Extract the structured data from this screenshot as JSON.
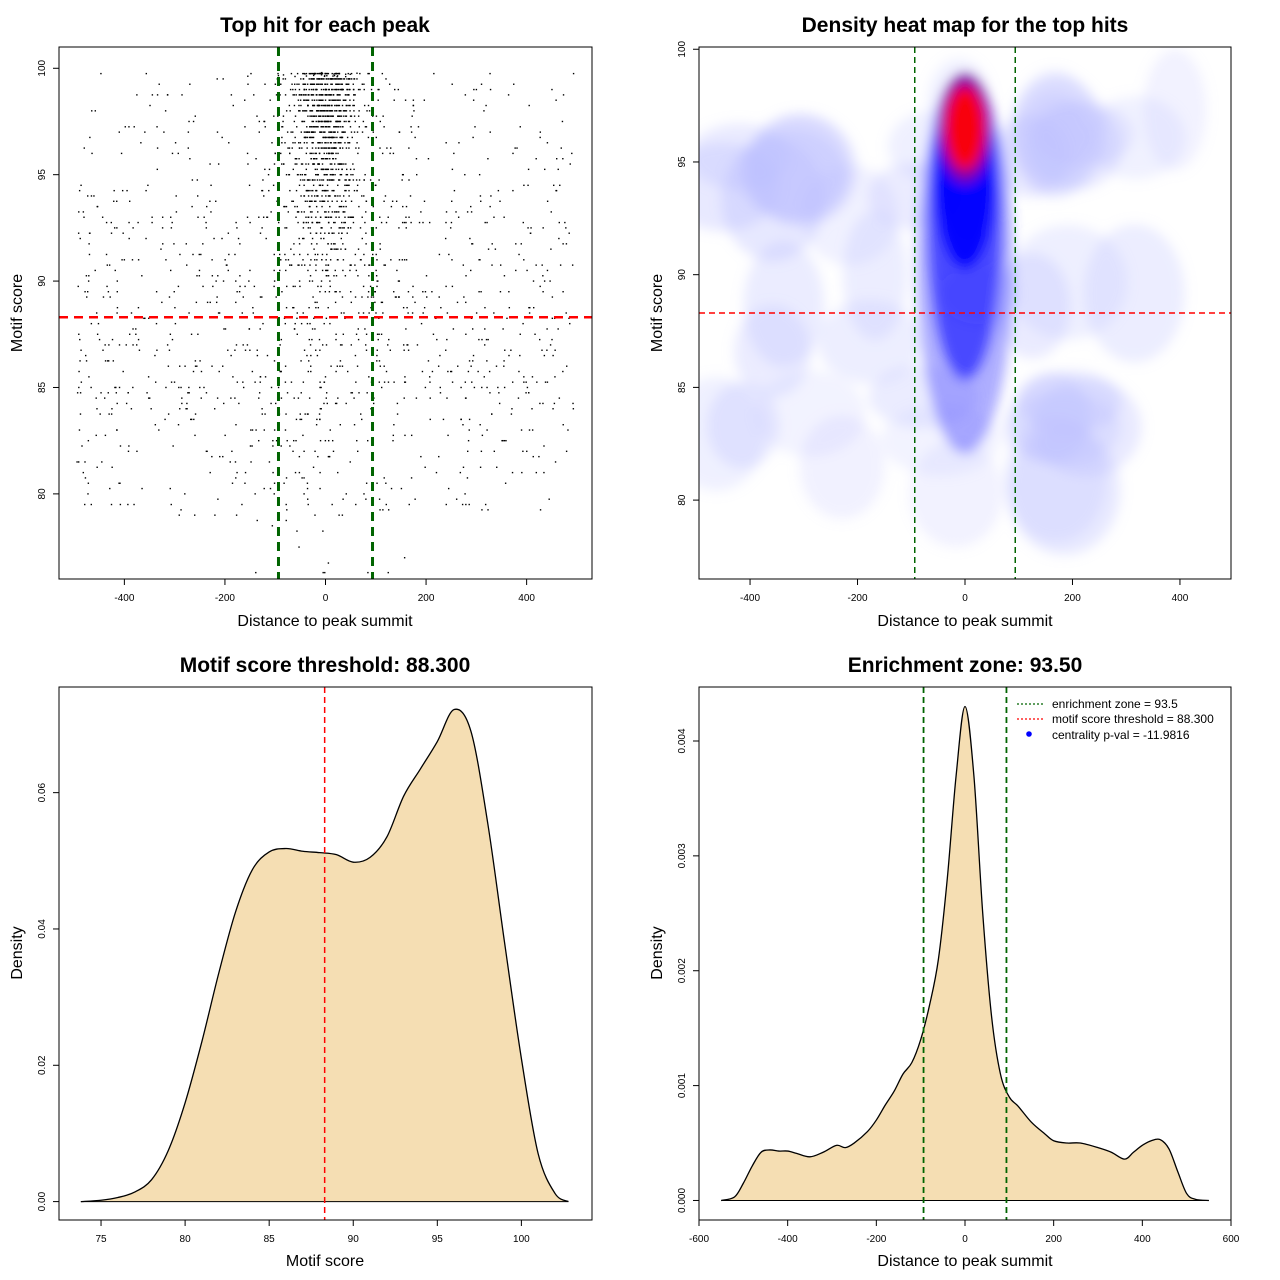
{
  "chart_data": [
    {
      "type": "scatter",
      "title": "Top hit for each peak",
      "xlabel": "Distance to peak summit",
      "ylabel": "Motif score",
      "xlim": [
        -530,
        530
      ],
      "ylim": [
        76,
        101
      ],
      "x_ticks": [
        -400,
        -200,
        0,
        200,
        400
      ],
      "y_ticks": [
        80,
        85,
        90,
        95,
        100
      ],
      "vlines": [
        -93.5,
        93.5
      ],
      "hline": 88.3,
      "vline_color": "#006400",
      "hline_color": "#ff0000",
      "point_color": "#000000",
      "n_points": 2400,
      "points": "dense cloud of top-hit positions: concentrated within ±100 of the peak summit at high motif scores (~95–100), sparse and uniform across ±500 at lower scores"
    },
    {
      "type": "heatmap",
      "title": "Density heat map for the top hits",
      "xlabel": "Distance to peak summit",
      "ylabel": "Motif score",
      "xlim": [
        -495,
        495
      ],
      "ylim": [
        76.5,
        100.1
      ],
      "x_ticks": [
        -400,
        -200,
        0,
        200,
        400
      ],
      "y_ticks": [
        80,
        85,
        90,
        95,
        100
      ],
      "vlines": [
        -93.5,
        93.5
      ],
      "hline": 88.3,
      "colors": [
        "#ffffff",
        "#0000ff",
        "#ff0000"
      ],
      "hotspot": {
        "x": 0,
        "y": 96.5
      }
    },
    {
      "type": "area",
      "title": "Motif score threshold: 88.300",
      "xlabel": "Motif score",
      "ylabel": "Density",
      "xlim": [
        72.5,
        104.2
      ],
      "ylim": [
        -0.0027,
        0.0755
      ],
      "x_ticks": [
        75,
        80,
        85,
        90,
        95,
        100
      ],
      "y_ticks": [
        0.0,
        0.02,
        0.04,
        0.06
      ],
      "y_tick_labels": [
        "0.00",
        "0.02",
        "0.04",
        "0.06"
      ],
      "vline": 88.3,
      "fill": "#f5deb3",
      "x": [
        73.8,
        75,
        76,
        77,
        78,
        79,
        80,
        81,
        82,
        83,
        84,
        85,
        86,
        87,
        88,
        89,
        90,
        91,
        92,
        93,
        94,
        95,
        96,
        97,
        98,
        99,
        100,
        101,
        102,
        102.8
      ],
      "y": [
        0.0,
        0.0002,
        0.0006,
        0.0014,
        0.0032,
        0.0075,
        0.0145,
        0.0235,
        0.0335,
        0.0425,
        0.0487,
        0.0513,
        0.0518,
        0.0514,
        0.0512,
        0.0509,
        0.0498,
        0.0505,
        0.0535,
        0.0595,
        0.0635,
        0.0675,
        0.0722,
        0.069,
        0.0555,
        0.038,
        0.021,
        0.007,
        0.0012,
        0.0
      ]
    },
    {
      "type": "area",
      "title": "Enrichment zone: 93.50",
      "xlabel": "Distance to peak summit",
      "ylabel": "Density",
      "xlim": [
        -600,
        600
      ],
      "ylim": [
        -0.00017,
        0.00447
      ],
      "x_ticks": [
        -600,
        -400,
        -200,
        0,
        200,
        400,
        600
      ],
      "y_ticks": [
        0.0,
        0.001,
        0.002,
        0.003,
        0.004
      ],
      "y_tick_labels": [
        "0.000",
        "0.001",
        "0.002",
        "0.003",
        "0.004"
      ],
      "vlines": [
        -93.5,
        93.5
      ],
      "fill": "#f5deb3",
      "x": [
        -550,
        -520,
        -500,
        -480,
        -460,
        -440,
        -420,
        -400,
        -380,
        -350,
        -320,
        -290,
        -270,
        -250,
        -220,
        -200,
        -180,
        -160,
        -140,
        -120,
        -100,
        -80,
        -60,
        -40,
        -20,
        0,
        20,
        40,
        60,
        80,
        100,
        120,
        150,
        180,
        200,
        230,
        260,
        300,
        330,
        360,
        380,
        400,
        420,
        440,
        460,
        480,
        500,
        520,
        550
      ],
      "y": [
        0.0,
        3e-05,
        0.00015,
        0.0003,
        0.00042,
        0.00044,
        0.00043,
        0.00043,
        0.00041,
        0.00038,
        0.00042,
        0.00048,
        0.00046,
        0.0005,
        0.0006,
        0.0007,
        0.00083,
        0.00095,
        0.0011,
        0.0012,
        0.0014,
        0.0017,
        0.0021,
        0.0028,
        0.0037,
        0.0043,
        0.0037,
        0.0025,
        0.0016,
        0.0011,
        0.0009,
        0.00082,
        0.00068,
        0.00058,
        0.00052,
        0.0005,
        0.0005,
        0.00046,
        0.00042,
        0.00036,
        0.00042,
        0.00048,
        0.00052,
        0.00053,
        0.00045,
        0.00025,
        6e-05,
        1e-05,
        0.0
      ],
      "legend_position": "top-right",
      "legend": [
        {
          "label": "enrichment zone = 93.5",
          "color": "#006400",
          "style": "dotted"
        },
        {
          "label": "motif score threshold = 88.300",
          "color": "#ff0000",
          "style": "dotted"
        },
        {
          "label": "centrality p-val = -11.9816",
          "color": "#0000ff",
          "style": "point"
        }
      ]
    }
  ]
}
